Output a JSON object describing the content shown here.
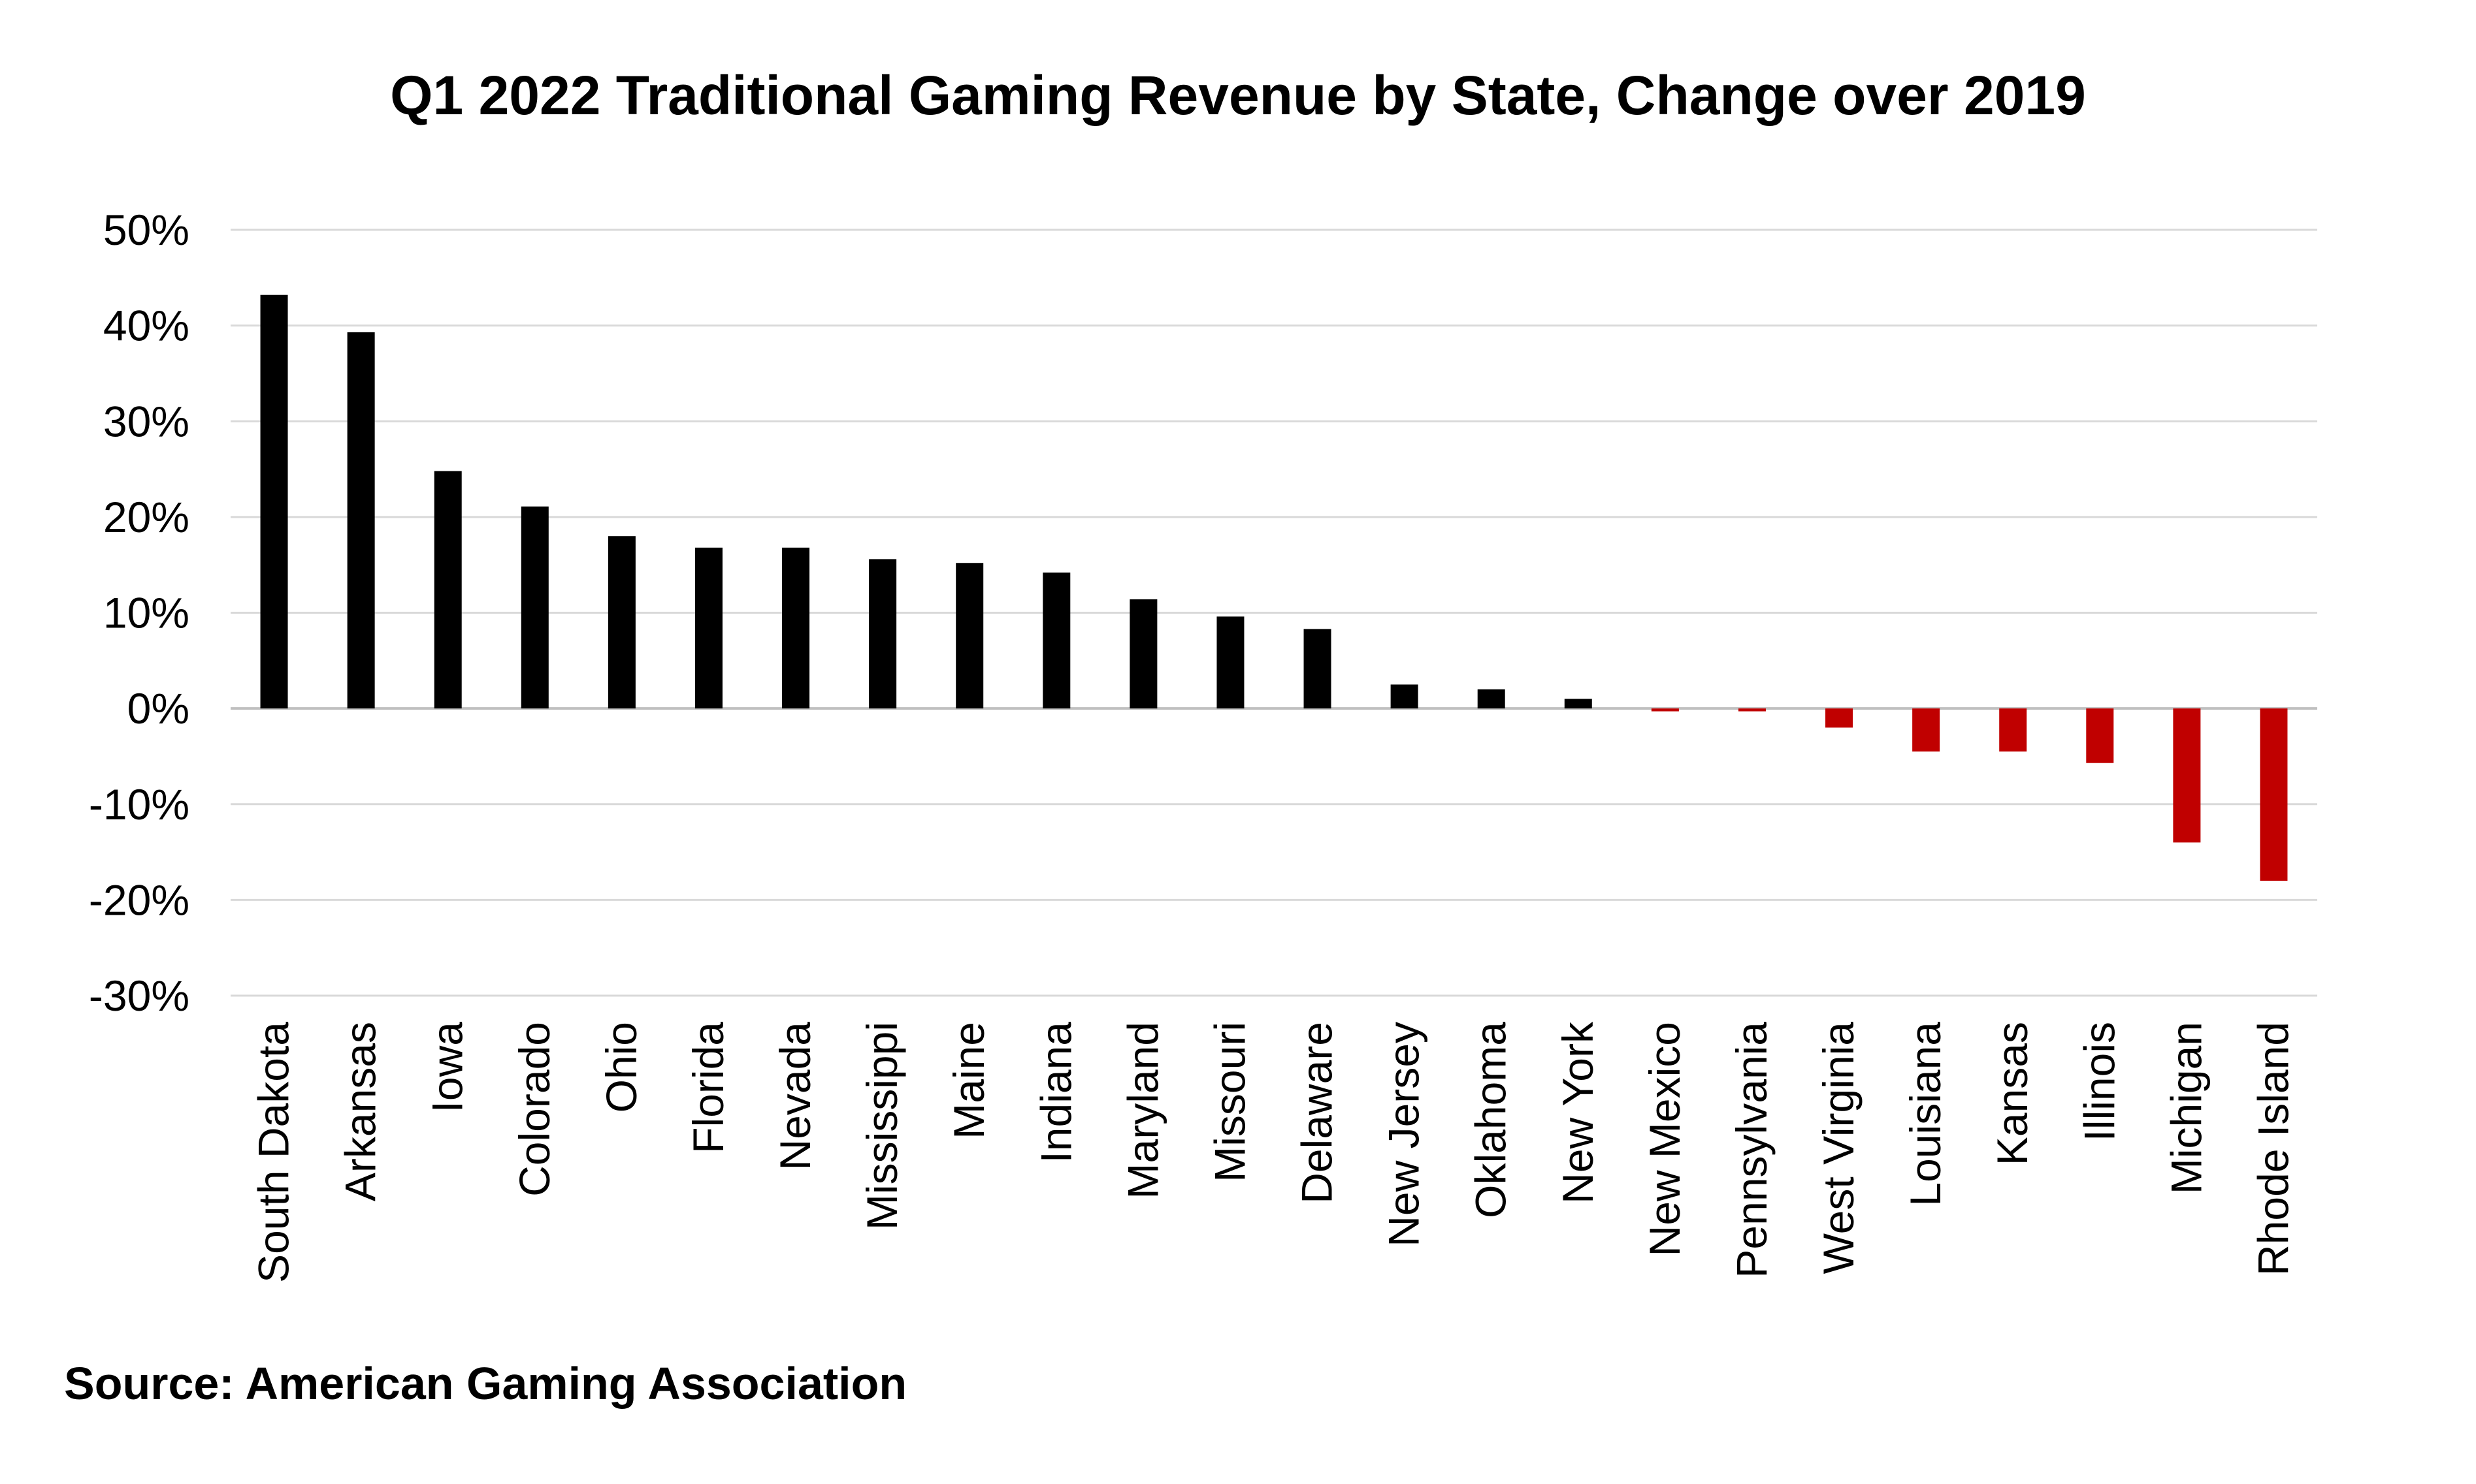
{
  "chart_data": {
    "type": "bar",
    "title": "Q1 2022 Traditional Gaming Revenue by State, Change over 2019",
    "source": "Source: American Gaming Association",
    "xlabel": "",
    "ylabel": "",
    "ylim": [
      -30,
      50
    ],
    "yticks": [
      50,
      40,
      30,
      20,
      10,
      0,
      -10,
      -20,
      -30
    ],
    "ytick_labels": [
      "50%",
      "40%",
      "30%",
      "20%",
      "10%",
      "0%",
      "-10%",
      "-20%",
      "-30%"
    ],
    "grid": true,
    "legend": "none",
    "categories": [
      "South Dakota",
      "Arkansas",
      "Iowa",
      "Colorado",
      "Ohio",
      "Florida",
      "Nevada",
      "Mississippi",
      "Maine",
      "Indiana",
      "Maryland",
      "Missouri",
      "Delaware",
      "New Jersey",
      "Oklahoma",
      "New York",
      "New Mexico",
      "Pennsylvania",
      "West Virginia",
      "Louisiana",
      "Kansas",
      "Illinois",
      "Michigan",
      "Rhode Island"
    ],
    "values": [
      43.2,
      39.3,
      24.8,
      21.1,
      18.0,
      16.8,
      16.8,
      15.6,
      15.2,
      14.2,
      11.4,
      9.6,
      8.3,
      2.5,
      2.0,
      1.0,
      -0.3,
      -0.3,
      -2.0,
      -4.5,
      -4.5,
      -5.7,
      -14.0,
      -18.0
    ],
    "colors": {
      "positive": "#000000",
      "negative": "#c00000"
    }
  }
}
